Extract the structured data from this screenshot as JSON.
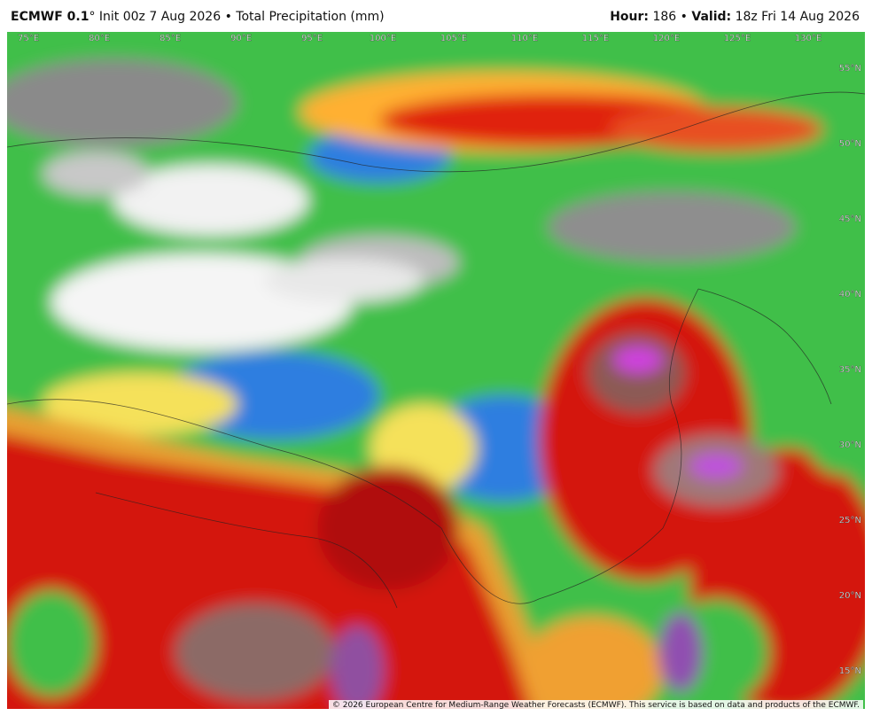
{
  "header": {
    "model": "ECMWF 0.1",
    "degree": "°",
    "init": "Init 00z 7 Aug 2026",
    "separator": "•",
    "field": "Total Precipitation (mm)",
    "hour_label": "Hour:",
    "hour": "186",
    "valid_label": "Valid:",
    "valid": "18z Fri 14 Aug 2026"
  },
  "map": {
    "longitude_labels": [
      "75°E",
      "80°E",
      "85°E",
      "90°E",
      "95°E",
      "100°E",
      "105°E",
      "110°E",
      "115°E",
      "120°E",
      "125°E",
      "130°E"
    ],
    "latitude_labels": [
      "55°N",
      "50°N",
      "45°N",
      "40°N",
      "35°N",
      "30°N",
      "25°N",
      "20°N",
      "15°N"
    ]
  },
  "footer": {
    "copyright": "© 2026 European Centre for Medium-Range Weather Forecasts (ECMWF). This service is based on data and products of the ECMWF."
  }
}
